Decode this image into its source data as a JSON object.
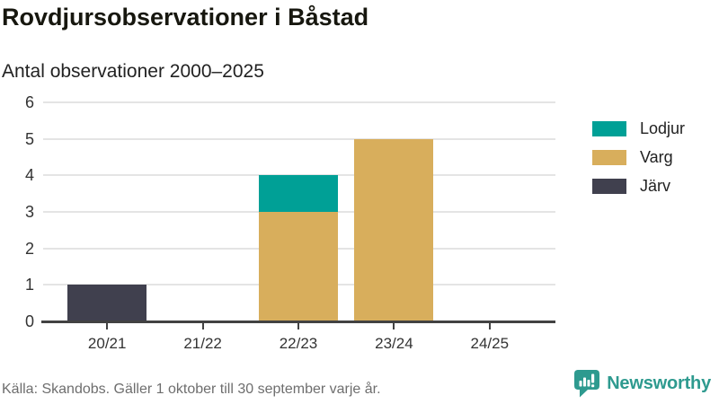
{
  "chart_data": {
    "type": "bar",
    "stacked": true,
    "title": "Rovdjursobservationer i Båstad",
    "subtitle": "Antal observationer 2000–2025",
    "categories": [
      "20/21",
      "21/22",
      "22/23",
      "23/24",
      "24/25"
    ],
    "series": [
      {
        "name": "Lodjur",
        "color": "#00a096",
        "values": [
          0,
          0,
          1,
          0,
          0
        ]
      },
      {
        "name": "Varg",
        "color": "#d8ae5c",
        "values": [
          0,
          0,
          3,
          5,
          0
        ]
      },
      {
        "name": "Järv",
        "color": "#40404e",
        "values": [
          1,
          0,
          0,
          0,
          0
        ]
      }
    ],
    "stack_order_bottom_to_top": [
      "Järv",
      "Varg",
      "Lodjur"
    ],
    "ylim": [
      0,
      6
    ],
    "yticks": [
      0,
      1,
      2,
      3,
      4,
      5,
      6
    ],
    "grid": true,
    "legend_position": "right",
    "xlabel": "",
    "ylabel": ""
  },
  "footer": {
    "source": "Källa: Skandobs. Gäller 1 oktober till 30 september varje år.",
    "brand_name": "Newsworthy",
    "brand_color": "#2E9A8F",
    "brand_icon": "newsworthy-bubble-barchart-icon"
  },
  "colors": {
    "axis": "#424242",
    "gridline": "#e4e4e4",
    "title_text": "#17170f",
    "tick_text": "#333333",
    "muted_text": "#6e6e6e"
  }
}
